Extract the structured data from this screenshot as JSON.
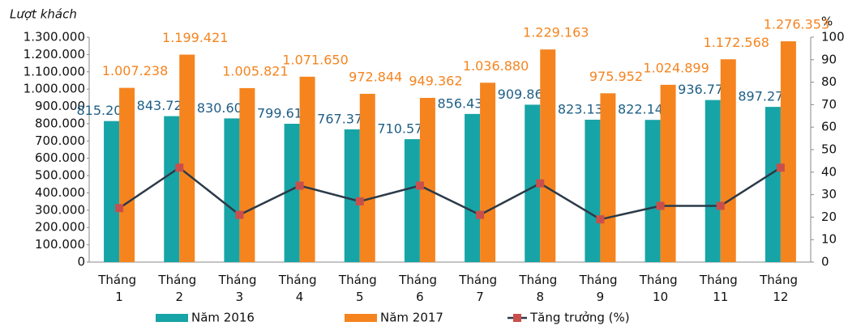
{
  "chart_data": {
    "type": "bar_line",
    "y_axis_title": "Lượt khách",
    "y2_axis_title": "%",
    "categories": [
      "Tháng 1",
      "Tháng 2",
      "Tháng 3",
      "Tháng 4",
      "Tháng 5",
      "Tháng 6",
      "Tháng 7",
      "Tháng 8",
      "Tháng 9",
      "Tháng 10",
      "Tháng 11",
      "Tháng 12"
    ],
    "series": [
      {
        "name": "Năm 2016",
        "color": "#17a4a6",
        "type": "bar",
        "values": [
          815200,
          843726,
          830608,
          799612,
          767373,
          710574,
          856438,
          909866,
          823135,
          822145,
          936779,
          897279
        ],
        "value_labels": [
          "815.200",
          "843.726",
          "830.608",
          "799.612",
          "767.373",
          "710.574",
          "856.438",
          "909.866",
          "823.135",
          "822.145",
          "936.779",
          "897.279"
        ],
        "label_color": "#1f5f86"
      },
      {
        "name": "Năm 2017",
        "color": "#f5841f",
        "type": "bar",
        "values": [
          1007238,
          1199421,
          1005821,
          1071650,
          972844,
          949362,
          1036880,
          1229163,
          975952,
          1024899,
          1172568,
          1276353
        ],
        "value_labels": [
          "1.007.238",
          "1.199.421",
          "1.005.821",
          "1.071.650",
          "972.844",
          "949.362",
          "1.036.880",
          "1.229.163",
          "975.952",
          "1.024.899",
          "1.172.568",
          "1.276.353"
        ],
        "label_color": "#f5841f"
      },
      {
        "name": "Tăng trưởng (%)",
        "color": "#2b3a48",
        "marker_color": "#c94f4c",
        "type": "line",
        "axis": "y2",
        "values": [
          24,
          42,
          21,
          34,
          27,
          34,
          21,
          35,
          19,
          25,
          25,
          42
        ]
      }
    ],
    "ylim": [
      0,
      1300000
    ],
    "yticks": [
      0,
      {
        "value": 100000,
        "label": "100.000"
      },
      {
        "value": 200000,
        "label": "200.000"
      },
      {
        "value": 300000,
        "label": "300.000"
      },
      {
        "value": 400000,
        "label": "400.000"
      },
      {
        "value": 500000,
        "label": "500.000"
      },
      {
        "value": 600000,
        "label": "600.000"
      },
      {
        "value": 700000,
        "label": "700.000"
      },
      {
        "value": 800000,
        "label": "800.000"
      },
      {
        "value": 900000,
        "label": "900.000"
      },
      {
        "value": 1000000,
        "label": "1.000.000"
      },
      {
        "value": 1100000,
        "label": "1.100.000"
      },
      {
        "value": 1200000,
        "label": "1.200.000"
      },
      {
        "value": 1300000,
        "label": "1.300.000"
      }
    ],
    "y2lim": [
      0,
      100
    ],
    "y2ticks": [
      0,
      10,
      20,
      30,
      40,
      50,
      60,
      70,
      80,
      90,
      100
    ]
  }
}
